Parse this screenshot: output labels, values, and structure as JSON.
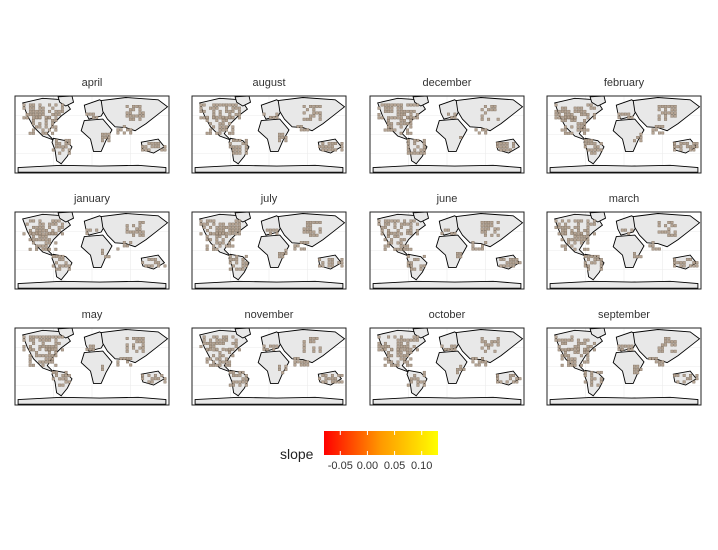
{
  "chart_data": {
    "type": "heatmap",
    "layout": "faceted map grid, 3 rows x 4 columns",
    "panels": [
      {
        "name": "april"
      },
      {
        "name": "august"
      },
      {
        "name": "december"
      },
      {
        "name": "february"
      },
      {
        "name": "january"
      },
      {
        "name": "july"
      },
      {
        "name": "june"
      },
      {
        "name": "march"
      },
      {
        "name": "may"
      },
      {
        "name": "november"
      },
      {
        "name": "october"
      },
      {
        "name": "september"
      }
    ],
    "fill": {
      "name": "slope",
      "scale": "continuous gradient",
      "range": [
        -0.08,
        0.13
      ],
      "breaks": [
        -0.05,
        0.0,
        0.05,
        0.1
      ],
      "break_labels": [
        "-0.05",
        "0.00",
        "0.05",
        "0.10"
      ],
      "low_color": "#ff0000",
      "high_color": "#ffff00"
    },
    "land_color": "#e8e8e8",
    "cell_color": "#b5a494",
    "grid": true,
    "legend_position": "bottom"
  }
}
